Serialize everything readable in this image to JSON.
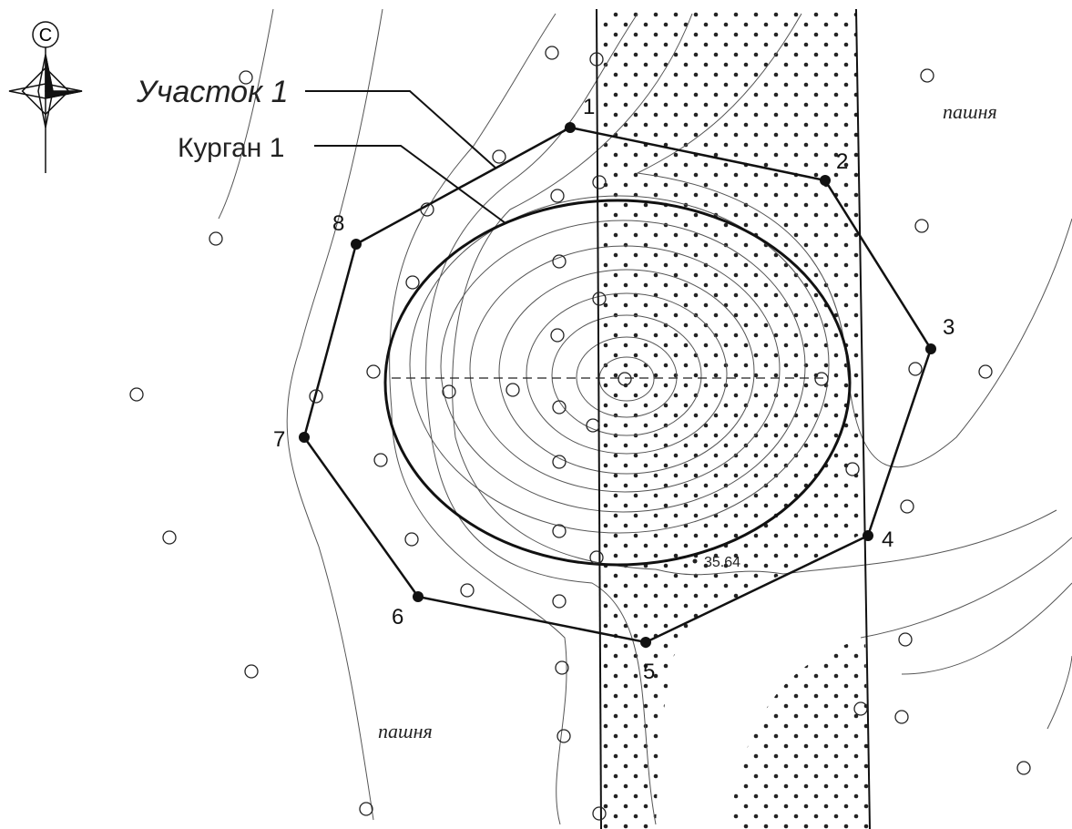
{
  "compass": {
    "label": "С"
  },
  "labels": {
    "plot": "Участок 1",
    "mound": "Курган 1",
    "field_ne": "пашня",
    "field_sw": "пашня"
  },
  "points": [
    {
      "label": "1"
    },
    {
      "label": "2"
    },
    {
      "label": "3"
    },
    {
      "label": "4"
    },
    {
      "label": "5"
    },
    {
      "label": "6"
    },
    {
      "label": "7"
    },
    {
      "label": "8"
    }
  ],
  "elevation": "35.64"
}
